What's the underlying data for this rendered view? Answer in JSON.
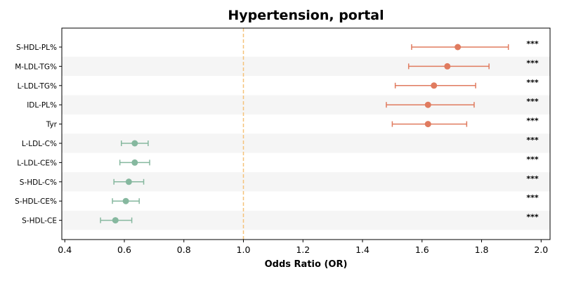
{
  "chart_data": {
    "type": "forest",
    "title": "Hypertension, portal",
    "xlabel": "Odds Ratio (OR)",
    "ylabel": "",
    "xlim": [
      0.39,
      2.03
    ],
    "xticks": [
      "0.4",
      "0.6",
      "0.8",
      "1.0",
      "1.2",
      "1.4",
      "1.6",
      "1.8",
      "2.0"
    ],
    "reference_line": 1.0,
    "grid": false,
    "alternating_row_shading": true,
    "colors": {
      "risk": "#e07b5f",
      "protective": "#86b89f",
      "reference": "#f5c27a",
      "row_shade": "#f5f5f5"
    },
    "rows": [
      {
        "label": "S-HDL-PL%",
        "or": 1.72,
        "ci_low": 1.565,
        "ci_high": 1.89,
        "sig": "***",
        "group": "risk"
      },
      {
        "label": "M-LDL-TG%",
        "or": 1.685,
        "ci_low": 1.555,
        "ci_high": 1.825,
        "sig": "***",
        "group": "risk"
      },
      {
        "label": "L-LDL-TG%",
        "or": 1.64,
        "ci_low": 1.51,
        "ci_high": 1.78,
        "sig": "***",
        "group": "risk"
      },
      {
        "label": "IDL-PL%",
        "or": 1.62,
        "ci_low": 1.48,
        "ci_high": 1.775,
        "sig": "***",
        "group": "risk"
      },
      {
        "label": "Tyr",
        "or": 1.62,
        "ci_low": 1.5,
        "ci_high": 1.75,
        "sig": "***",
        "group": "risk"
      },
      {
        "label": "L-LDL-C%",
        "or": 0.635,
        "ci_low": 0.59,
        "ci_high": 0.68,
        "sig": "***",
        "group": "protective"
      },
      {
        "label": "L-LDL-CE%",
        "or": 0.635,
        "ci_low": 0.585,
        "ci_high": 0.685,
        "sig": "***",
        "group": "protective"
      },
      {
        "label": "S-HDL-C%",
        "or": 0.615,
        "ci_low": 0.565,
        "ci_high": 0.665,
        "sig": "***",
        "group": "protective"
      },
      {
        "label": "S-HDL-CE%",
        "or": 0.605,
        "ci_low": 0.56,
        "ci_high": 0.65,
        "sig": "***",
        "group": "protective"
      },
      {
        "label": "S-HDL-CE",
        "or": 0.57,
        "ci_low": 0.52,
        "ci_high": 0.625,
        "sig": "***",
        "group": "protective"
      }
    ]
  }
}
